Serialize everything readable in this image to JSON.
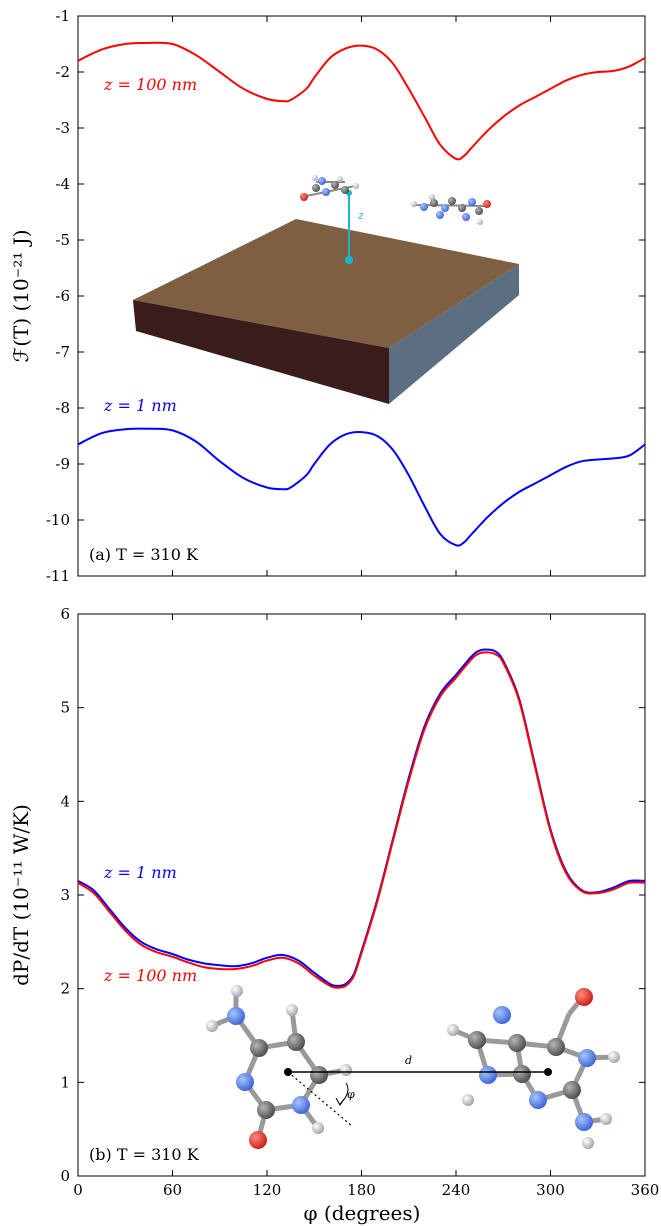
{
  "chart_data": [
    {
      "type": "line",
      "panel_label": "(a) T = 310 K",
      "ylabel": "ℱ(T) (10⁻²¹ J)",
      "xlim": [
        0,
        360
      ],
      "ylim": [
        -11,
        -1
      ],
      "yticks": [
        -1,
        -2,
        -3,
        -4,
        -5,
        -6,
        -7,
        -8,
        -9,
        -10,
        -11
      ],
      "xticks": [
        0,
        60,
        120,
        180,
        240,
        300,
        360
      ],
      "x": [
        0,
        15,
        30,
        45,
        60,
        75,
        90,
        105,
        120,
        130,
        135,
        145,
        150,
        160,
        170,
        180,
        190,
        200,
        210,
        220,
        230,
        240,
        245,
        250,
        260,
        270,
        280,
        290,
        300,
        310,
        320,
        330,
        340,
        350,
        360
      ],
      "series": [
        {
          "name": "z = 100 nm",
          "color": "#ff0000",
          "values": [
            -1.8,
            -1.6,
            -1.5,
            -1.48,
            -1.5,
            -1.7,
            -2.0,
            -2.3,
            -2.48,
            -2.52,
            -2.5,
            -2.3,
            -2.1,
            -1.75,
            -1.58,
            -1.53,
            -1.6,
            -1.85,
            -2.3,
            -2.8,
            -3.3,
            -3.55,
            -3.5,
            -3.35,
            -3.05,
            -2.8,
            -2.6,
            -2.45,
            -2.3,
            -2.15,
            -2.05,
            -2.0,
            -1.98,
            -1.9,
            -1.75
          ]
        },
        {
          "name": "z = 1 nm",
          "color": "#0000ff",
          "values": [
            -8.65,
            -8.45,
            -8.38,
            -8.37,
            -8.4,
            -8.6,
            -8.95,
            -9.25,
            -9.42,
            -9.45,
            -9.42,
            -9.2,
            -9.0,
            -8.65,
            -8.47,
            -8.43,
            -8.5,
            -8.75,
            -9.2,
            -9.75,
            -10.25,
            -10.45,
            -10.4,
            -10.25,
            -9.95,
            -9.7,
            -9.5,
            -9.35,
            -9.2,
            -9.05,
            -8.95,
            -8.92,
            -8.9,
            -8.85,
            -8.65
          ]
        }
      ],
      "inset_annotation": "z"
    },
    {
      "type": "line",
      "panel_label": "(b) T = 310 K",
      "ylabel": "dP/dT (10⁻¹¹ W/K)",
      "xlabel": "φ (degrees)",
      "xlim": [
        0,
        360
      ],
      "ylim": [
        0,
        6
      ],
      "yticks": [
        0,
        1,
        2,
        3,
        4,
        5,
        6
      ],
      "xticks": [
        0,
        60,
        120,
        180,
        240,
        300,
        360
      ],
      "x": [
        0,
        10,
        20,
        30,
        40,
        50,
        60,
        70,
        80,
        90,
        100,
        110,
        120,
        130,
        140,
        150,
        160,
        165,
        170,
        175,
        180,
        190,
        200,
        210,
        220,
        230,
        240,
        250,
        255,
        260,
        265,
        270,
        280,
        290,
        300,
        310,
        320,
        330,
        340,
        350,
        360
      ],
      "series": [
        {
          "name": "z = 1 nm",
          "color": "#0000ff",
          "values": [
            3.15,
            3.05,
            2.85,
            2.65,
            2.5,
            2.42,
            2.37,
            2.31,
            2.27,
            2.25,
            2.24,
            2.27,
            2.33,
            2.36,
            2.3,
            2.17,
            2.05,
            2.03,
            2.05,
            2.15,
            2.4,
            2.95,
            3.6,
            4.25,
            4.8,
            5.15,
            5.35,
            5.55,
            5.61,
            5.62,
            5.6,
            5.5,
            5.1,
            4.4,
            3.7,
            3.25,
            3.05,
            3.03,
            3.08,
            3.15,
            3.15
          ]
        },
        {
          "name": "z = 100 nm",
          "color": "#ff0000",
          "values": [
            3.13,
            3.02,
            2.82,
            2.62,
            2.47,
            2.39,
            2.34,
            2.28,
            2.23,
            2.21,
            2.21,
            2.24,
            2.3,
            2.33,
            2.27,
            2.14,
            2.03,
            2.01,
            2.03,
            2.13,
            2.38,
            2.93,
            3.58,
            4.22,
            4.77,
            5.12,
            5.32,
            5.52,
            5.58,
            5.59,
            5.57,
            5.48,
            5.08,
            4.38,
            3.68,
            3.23,
            3.04,
            3.02,
            3.06,
            3.13,
            3.13
          ]
        }
      ],
      "inset_annotation_d": "d",
      "inset_annotation_phi": "φ"
    }
  ]
}
